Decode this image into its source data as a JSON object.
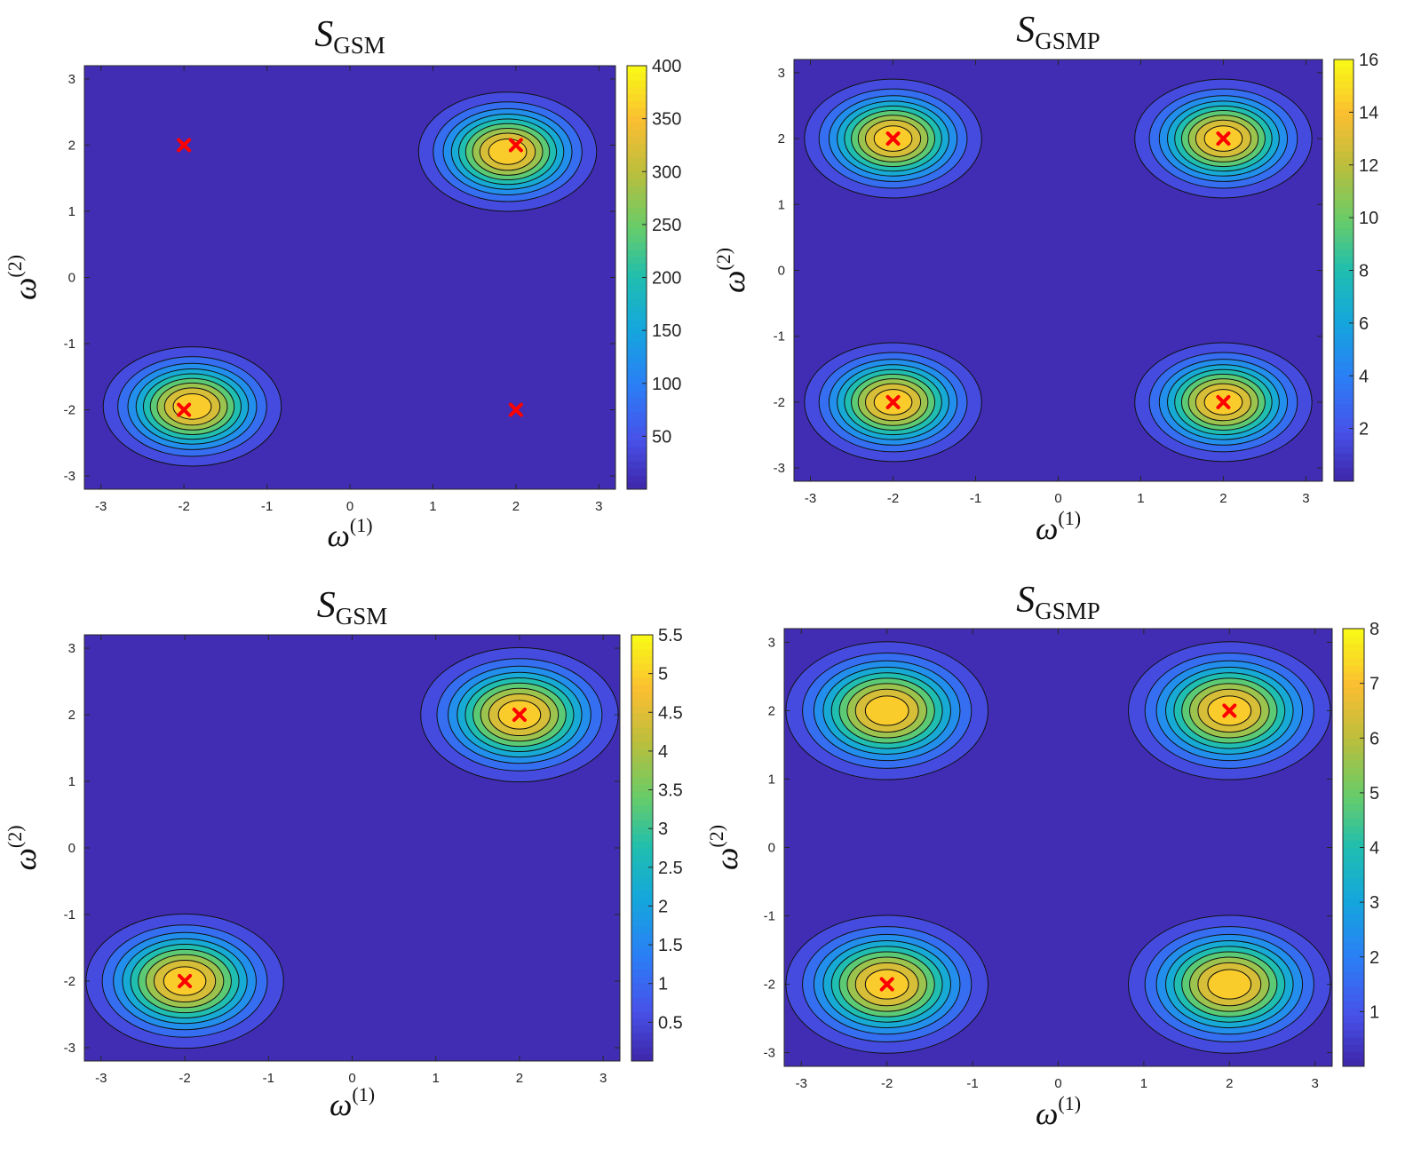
{
  "chart_data": [
    {
      "type": "contour",
      "title_main": "S",
      "title_sub": "GSM",
      "xlabel_main": "ω",
      "xlabel_sup": "(1)",
      "ylabel_main": "ω",
      "ylabel_sup": "(2)",
      "xlim": [
        -3.2,
        3.2
      ],
      "ylim": [
        -3.2,
        3.2
      ],
      "xticks": [
        -3,
        -2,
        -1,
        0,
        1,
        2,
        3
      ],
      "yticks": [
        -3,
        -2,
        -1,
        0,
        1,
        2,
        3
      ],
      "colorbar": {
        "min": 0,
        "max": 400,
        "ticks": [
          50,
          100,
          150,
          200,
          250,
          300,
          350,
          400
        ]
      },
      "peaks": [
        {
          "x": 1.9,
          "y": 1.9,
          "amplitude": 400
        },
        {
          "x": -1.9,
          "y": -1.95,
          "amplitude": 400
        }
      ],
      "sigma": [
        0.5,
        0.42
      ],
      "markers": [
        {
          "x": -2,
          "y": 2
        },
        {
          "x": 2,
          "y": 2
        },
        {
          "x": -2,
          "y": -2
        },
        {
          "x": 2,
          "y": -2
        }
      ],
      "colormap": "parula"
    },
    {
      "type": "contour",
      "title_main": "S",
      "title_sub": "GSMP",
      "xlabel_main": "ω",
      "xlabel_sup": "(1)",
      "ylabel_main": "ω",
      "ylabel_sup": "(2)",
      "xlim": [
        -3.2,
        3.2
      ],
      "ylim": [
        -3.2,
        3.2
      ],
      "xticks": [
        -3,
        -2,
        -1,
        0,
        1,
        2,
        3
      ],
      "yticks": [
        -3,
        -2,
        -1,
        0,
        1,
        2,
        3
      ],
      "colorbar": {
        "min": 0,
        "max": 16,
        "ticks": [
          2,
          4,
          6,
          8,
          10,
          12,
          14,
          16
        ]
      },
      "peaks": [
        {
          "x": -2,
          "y": 2,
          "amplitude": 16
        },
        {
          "x": 2,
          "y": 2,
          "amplitude": 16
        },
        {
          "x": -2,
          "y": -2,
          "amplitude": 16
        },
        {
          "x": 2,
          "y": -2,
          "amplitude": 16
        }
      ],
      "sigma": [
        0.5,
        0.42
      ],
      "markers": [
        {
          "x": -2,
          "y": 2
        },
        {
          "x": 2,
          "y": 2
        },
        {
          "x": -2,
          "y": -2
        },
        {
          "x": 2,
          "y": -2
        }
      ],
      "colormap": "parula"
    },
    {
      "type": "contour",
      "title_main": "S",
      "title_sub": "GSM",
      "xlabel_main": "ω",
      "xlabel_sup": "(1)",
      "ylabel_main": "ω",
      "ylabel_sup": "(2)",
      "xlim": [
        -3.2,
        3.2
      ],
      "ylim": [
        -3.2,
        3.2
      ],
      "xticks": [
        -3,
        -2,
        -1,
        0,
        1,
        2,
        3
      ],
      "yticks": [
        -3,
        -2,
        -1,
        0,
        1,
        2,
        3
      ],
      "colorbar": {
        "min": 0,
        "max": 5.5,
        "ticks": [
          0.5,
          1,
          1.5,
          2,
          2.5,
          3,
          3.5,
          4,
          4.5,
          5,
          5.5
        ]
      },
      "peaks": [
        {
          "x": 2,
          "y": 2,
          "amplitude": 5.5
        },
        {
          "x": -2,
          "y": -2,
          "amplitude": 5.5
        }
      ],
      "sigma": [
        0.55,
        0.47
      ],
      "markers": [
        {
          "x": 2,
          "y": 2
        },
        {
          "x": -2,
          "y": -2
        }
      ],
      "colormap": "parula"
    },
    {
      "type": "contour",
      "title_main": "S",
      "title_sub": "GSMP",
      "xlabel_main": "ω",
      "xlabel_sup": "(1)",
      "ylabel_main": "ω",
      "ylabel_sup": "(2)",
      "xlim": [
        -3.2,
        3.2
      ],
      "ylim": [
        -3.2,
        3.2
      ],
      "xticks": [
        -3,
        -2,
        -1,
        0,
        1,
        2,
        3
      ],
      "yticks": [
        -3,
        -2,
        -1,
        0,
        1,
        2,
        3
      ],
      "colorbar": {
        "min": 0,
        "max": 8,
        "ticks": [
          1,
          2,
          3,
          4,
          5,
          6,
          7,
          8
        ]
      },
      "peaks": [
        {
          "x": -2,
          "y": 2,
          "amplitude": 8
        },
        {
          "x": 2,
          "y": 2,
          "amplitude": 8
        },
        {
          "x": -2,
          "y": -2,
          "amplitude": 8
        },
        {
          "x": 2,
          "y": -2,
          "amplitude": 8
        }
      ],
      "sigma": [
        0.55,
        0.47
      ],
      "markers": [
        {
          "x": 2,
          "y": 2
        },
        {
          "x": -2,
          "y": -2
        }
      ],
      "colormap": "parula"
    }
  ]
}
